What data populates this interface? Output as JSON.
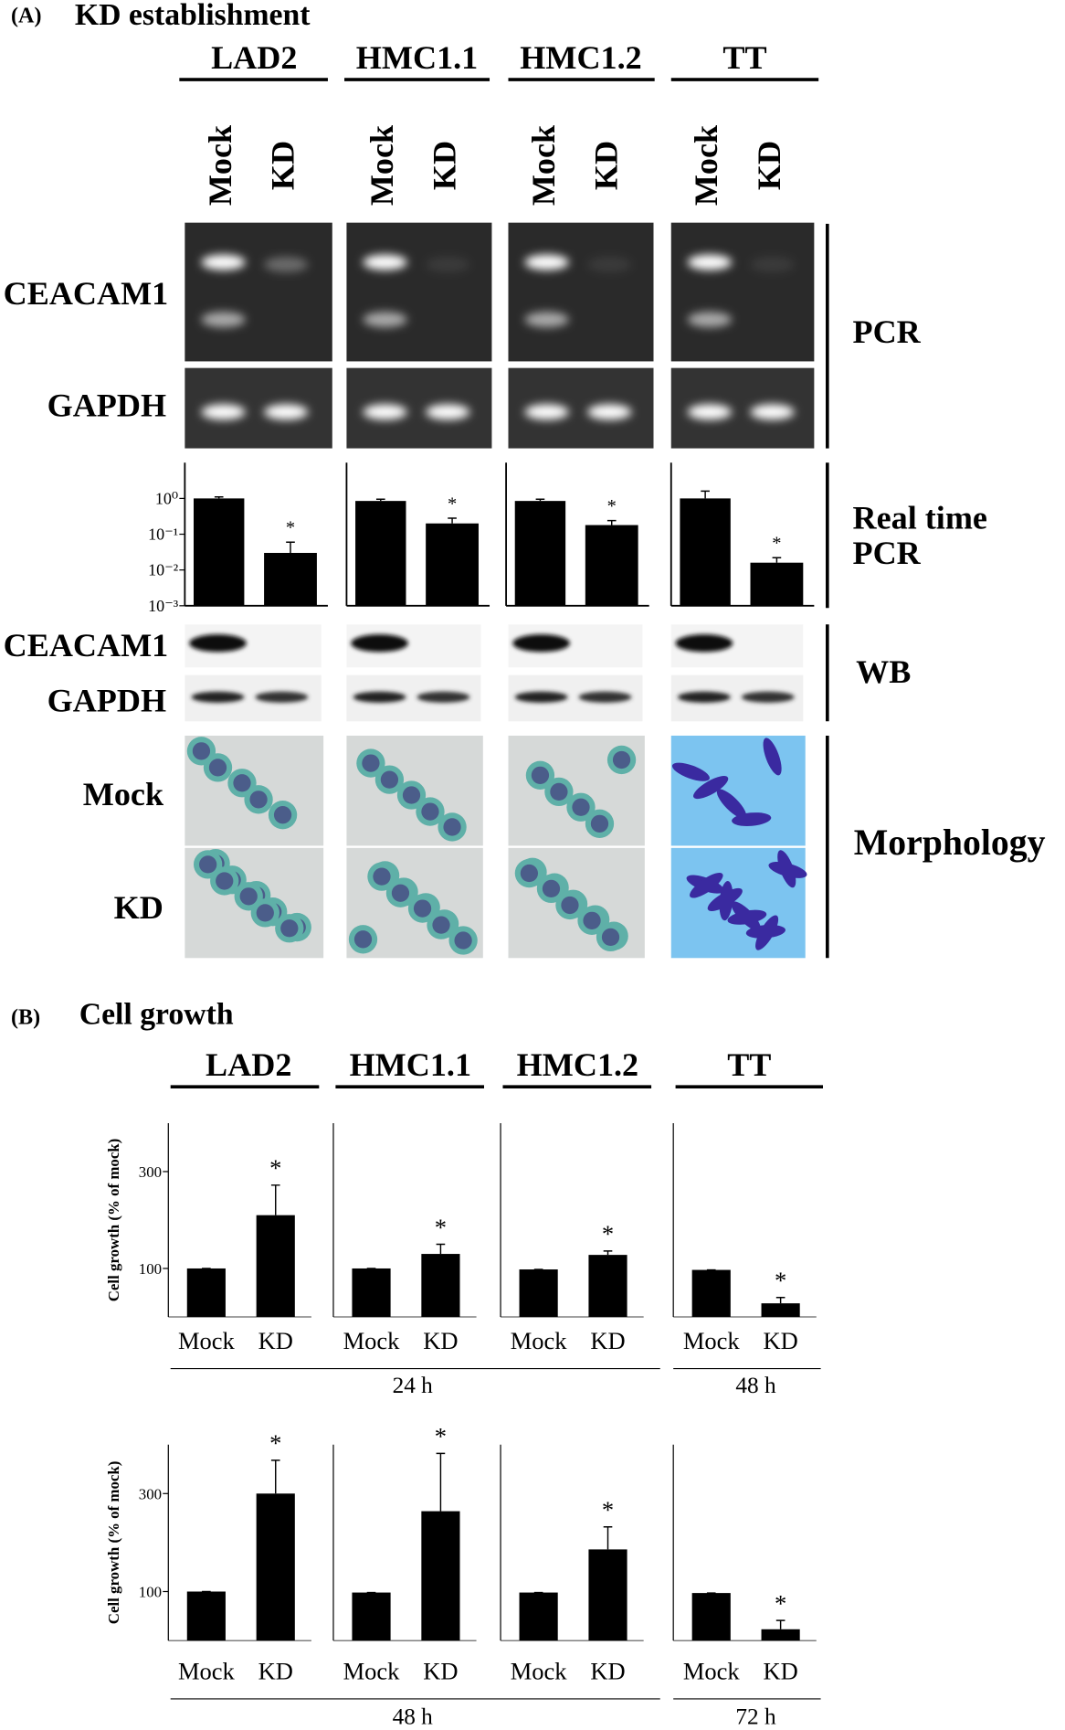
{
  "panel_a": {
    "label": "(A)",
    "title": "KD establishment",
    "cell_lines": [
      "LAD2",
      "HMC1.1",
      "HMC1.2",
      "TT"
    ],
    "lane_labels": [
      "Mock",
      "KD"
    ],
    "row_labels": {
      "pcr_target": "CEACAM1",
      "pcr_control": "GAPDH",
      "wb_target": "CEACAM1",
      "wb_control": "GAPDH",
      "morph_mock": "Mock",
      "morph_kd": "KD"
    },
    "section_labels": {
      "pcr": "PCR",
      "realtime": [
        "Real time",
        "PCR"
      ],
      "wb": "WB",
      "morphology": "Morphology"
    }
  },
  "panel_b": {
    "label": "(B)",
    "title": "Cell growth",
    "cell_lines": [
      "LAD2",
      "HMC1.1",
      "HMC1.2",
      "TT"
    ],
    "time_labels": [
      [
        "24 h",
        "48 h"
      ],
      [
        "48 h",
        "72 h"
      ]
    ]
  },
  "chart_data": [
    {
      "type": "bar",
      "log_scale": true,
      "categories": [
        "Mock",
        "KD"
      ],
      "values": [
        1.0,
        0.03
      ],
      "errors": [
        0.1,
        0.03
      ],
      "color": "#000000",
      "ylim": [
        0.001,
        10
      ],
      "yticks": [
        {
          "value": 1,
          "label": "10⁰"
        },
        {
          "value": 0.1,
          "label": "10⁻¹"
        },
        {
          "value": 0.01,
          "label": "10⁻²"
        },
        {
          "value": 0.001,
          "label": "10⁻³"
        }
      ],
      "annotations": [
        {
          "index": 1,
          "text": "*"
        }
      ]
    },
    {
      "type": "bar",
      "log_scale": true,
      "categories": [
        "Mock",
        "KD"
      ],
      "values": [
        0.85,
        0.2
      ],
      "errors": [
        0.1,
        0.08
      ],
      "color": "#000000",
      "ylim": [
        0.001,
        10
      ],
      "annotations": [
        {
          "index": 1,
          "text": "*"
        }
      ]
    },
    {
      "type": "bar",
      "log_scale": true,
      "categories": [
        "Mock",
        "KD"
      ],
      "values": [
        0.85,
        0.18
      ],
      "errors": [
        0.1,
        0.06
      ],
      "color": "#000000",
      "ylim": [
        0.001,
        10
      ],
      "annotations": [
        {
          "index": 1,
          "text": "*"
        }
      ]
    },
    {
      "type": "bar",
      "log_scale": true,
      "categories": [
        "Mock",
        "KD"
      ],
      "values": [
        1.0,
        0.016
      ],
      "errors": [
        0.6,
        0.006
      ],
      "color": "#000000",
      "ylim": [
        0.001,
        10
      ],
      "annotations": [
        {
          "index": 1,
          "text": "*"
        }
      ]
    },
    {
      "type": "bar",
      "ylabel": "Cell growth (% of mock)",
      "categories": [
        "Mock",
        "KD"
      ],
      "values": [
        100,
        210
      ],
      "errors": [
        0,
        62
      ],
      "color": "#000000",
      "ylim": [
        0,
        400
      ],
      "yticks": [
        100,
        300
      ],
      "annotations": [
        {
          "index": 1,
          "text": "*"
        }
      ]
    },
    {
      "type": "bar",
      "categories": [
        "Mock",
        "KD"
      ],
      "values": [
        100,
        130
      ],
      "errors": [
        0,
        20
      ],
      "color": "#000000",
      "ylim": [
        0,
        400
      ],
      "annotations": [
        {
          "index": 1,
          "text": "*"
        }
      ]
    },
    {
      "type": "bar",
      "categories": [
        "Mock",
        "KD"
      ],
      "values": [
        98,
        128
      ],
      "errors": [
        0,
        8
      ],
      "color": "#000000",
      "ylim": [
        0,
        400
      ],
      "annotations": [
        {
          "index": 1,
          "text": "*"
        }
      ]
    },
    {
      "type": "bar",
      "categories": [
        "Mock",
        "KD"
      ],
      "values": [
        97,
        28
      ],
      "errors": [
        0,
        12
      ],
      "color": "#000000",
      "ylim": [
        0,
        400
      ],
      "annotations": [
        {
          "index": 1,
          "text": "*"
        }
      ]
    },
    {
      "type": "bar",
      "ylabel": "Cell growth (% of mock)",
      "categories": [
        "Mock",
        "KD"
      ],
      "values": [
        100,
        300
      ],
      "errors": [
        0,
        68
      ],
      "color": "#000000",
      "ylim": [
        0,
        400
      ],
      "yticks": [
        100,
        300
      ],
      "annotations": [
        {
          "index": 1,
          "text": "*"
        }
      ]
    },
    {
      "type": "bar",
      "categories": [
        "Mock",
        "KD"
      ],
      "values": [
        98,
        264
      ],
      "errors": [
        0,
        118
      ],
      "color": "#000000",
      "ylim": [
        0,
        400
      ],
      "annotations": [
        {
          "index": 1,
          "text": "*"
        }
      ]
    },
    {
      "type": "bar",
      "categories": [
        "Mock",
        "KD"
      ],
      "values": [
        98,
        186
      ],
      "errors": [
        0,
        46
      ],
      "color": "#000000",
      "ylim": [
        0,
        400
      ],
      "annotations": [
        {
          "index": 1,
          "text": "*"
        }
      ]
    },
    {
      "type": "bar",
      "categories": [
        "Mock",
        "KD"
      ],
      "values": [
        97,
        23
      ],
      "errors": [
        0,
        18
      ],
      "color": "#000000",
      "ylim": [
        0,
        400
      ],
      "annotations": [
        {
          "index": 1,
          "text": "*"
        }
      ]
    }
  ]
}
